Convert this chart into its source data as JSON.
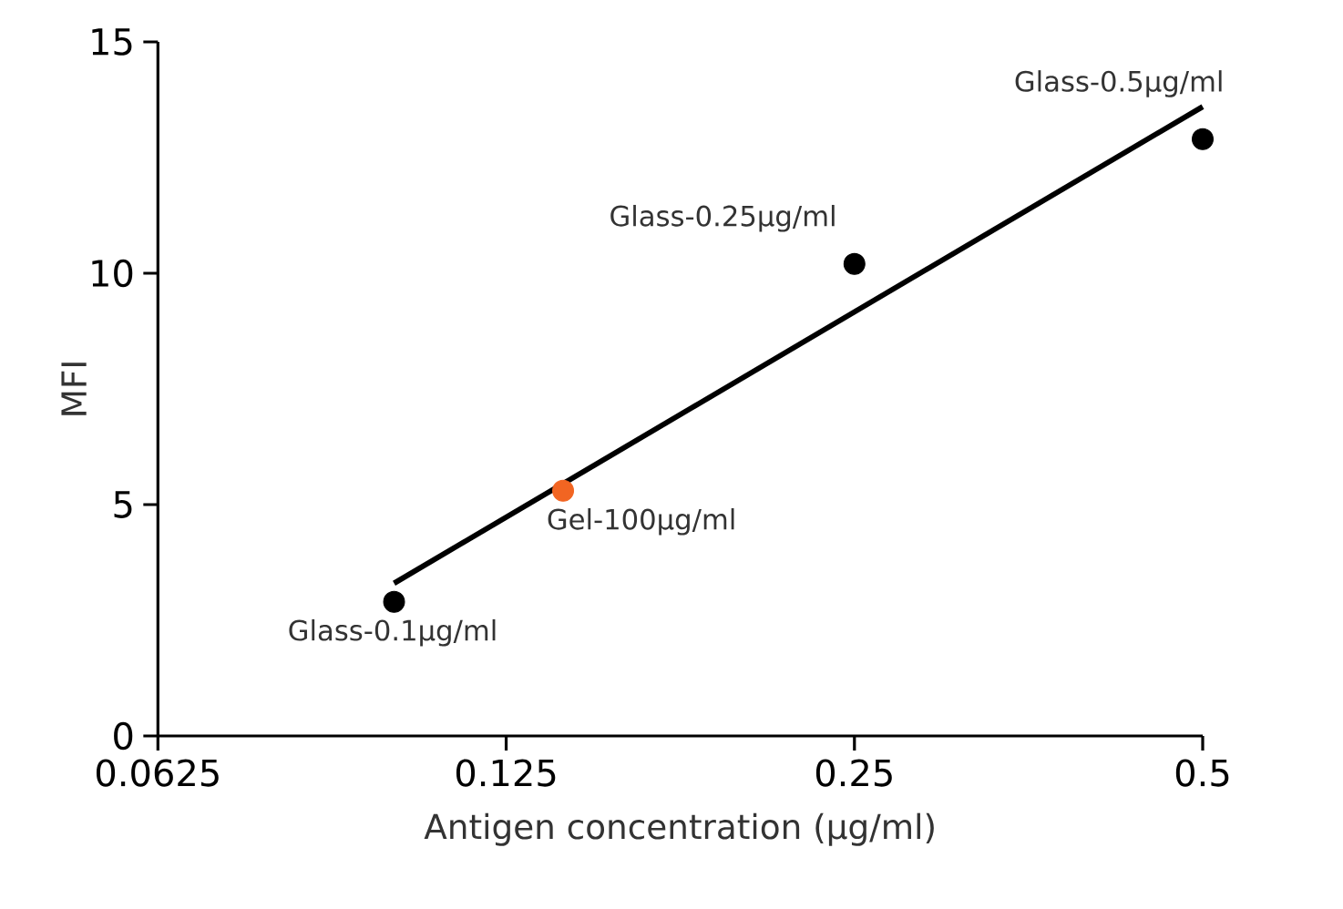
{
  "chart_data": {
    "type": "scatter",
    "xlabel": "Antigen concentration (µg/ml)",
    "ylabel": "MFI",
    "log": "x",
    "xlim": [
      0.0625,
      0.5
    ],
    "xticks": [
      0.0625,
      0.125,
      0.25,
      0.5
    ],
    "ylim": [
      0,
      15
    ],
    "yticks": [
      0,
      5,
      10,
      15
    ],
    "series": [
      {
        "type": "scatter",
        "marker": "circle",
        "x": [
          0.1,
          0.14,
          0.25,
          0.5
        ],
        "values": [
          2.9,
          5.3,
          10.2,
          12.9
        ],
        "colors": [
          "#000000",
          "#f26522",
          "#000000",
          "#000000"
        ]
      },
      {
        "type": "line",
        "x": [
          0.1,
          0.5
        ],
        "values": [
          3.3,
          13.6
        ],
        "color": "#000000",
        "line_style": "solid",
        "marker": "none"
      }
    ],
    "annotations": [
      {
        "text": "Glass-0.1µg/ml",
        "x": 0.1,
        "y": 2.9
      },
      {
        "text": "Gel-100µg/ml",
        "x": 0.14,
        "y": 5.3
      },
      {
        "text": "Glass-0.25µg/ml",
        "x": 0.25,
        "y": 10.2
      },
      {
        "text": "Glass-0.5µg/ml",
        "x": 0.5,
        "y": 12.9
      }
    ]
  }
}
